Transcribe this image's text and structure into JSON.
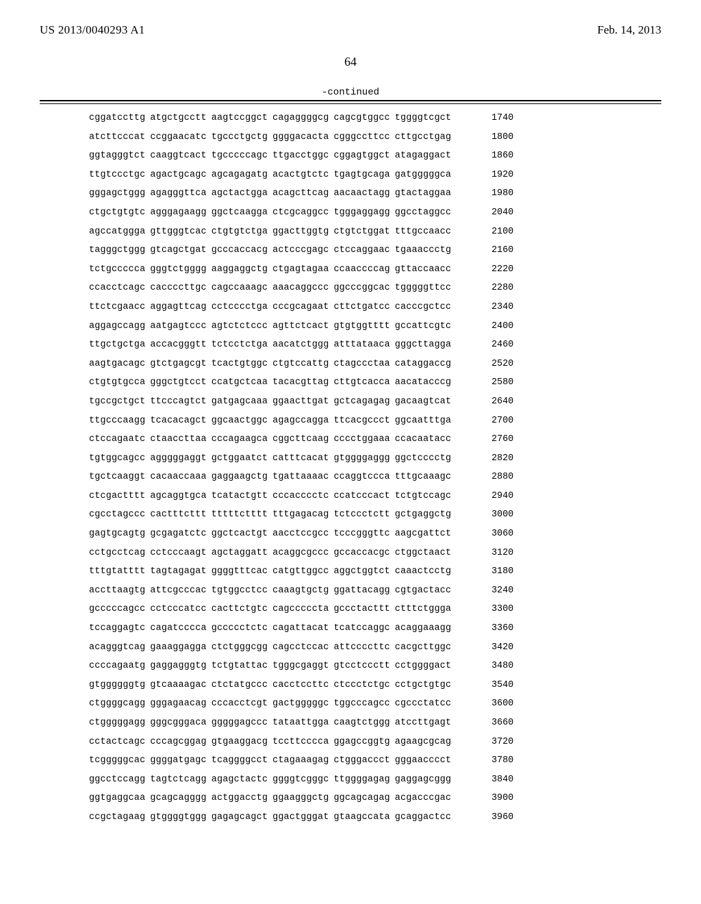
{
  "header": {
    "publication_number": "US 2013/0040293 A1",
    "date": "Feb. 14, 2013"
  },
  "page_number": "64",
  "continued_label": "-continued",
  "sequence": {
    "rows": [
      {
        "g": [
          "cggatccttg",
          "atgctgcctt",
          "aagtccggct",
          "cagaggggcg",
          "cagcgtggcc",
          "tggggtcgct"
        ],
        "pos": 1740
      },
      {
        "g": [
          "atcttcccat",
          "ccggaacatc",
          "tgccctgctg",
          "ggggacacta",
          "cgggccttcc",
          "cttgcctgag"
        ],
        "pos": 1800
      },
      {
        "g": [
          "ggtagggtct",
          "caaggtcact",
          "tgcccccagc",
          "ttgacctggc",
          "cggagtggct",
          "atagaggact"
        ],
        "pos": 1860
      },
      {
        "g": [
          "ttgtccctgc",
          "agactgcagc",
          "agcagagatg",
          "acactgtctc",
          "tgagtgcaga",
          "gatgggggca"
        ],
        "pos": 1920
      },
      {
        "g": [
          "gggagctggg",
          "agagggttca",
          "agctactgga",
          "acagcttcag",
          "aacaactagg",
          "gtactaggaa"
        ],
        "pos": 1980
      },
      {
        "g": [
          "ctgctgtgtc",
          "agggagaagg",
          "ggctcaagga",
          "ctcgcaggcc",
          "tgggaggagg",
          "ggcctaggcc"
        ],
        "pos": 2040
      },
      {
        "g": [
          "agccatggga",
          "gttgggtcac",
          "ctgtgtctga",
          "ggacttggtg",
          "ctgtctggat",
          "tttgccaacc"
        ],
        "pos": 2100
      },
      {
        "g": [
          "tagggctggg",
          "gtcagctgat",
          "gcccaccacg",
          "actcccgagc",
          "ctccaggaac",
          "tgaaaccctg"
        ],
        "pos": 2160
      },
      {
        "g": [
          "tctgccccca",
          "gggtctgggg",
          "aaggaggctg",
          "ctgagtagaa",
          "ccaaccccag",
          "gttaccaacc"
        ],
        "pos": 2220
      },
      {
        "g": [
          "ccacctcagc",
          "caccccttgc",
          "cagccaaagc",
          "aaacaggccc",
          "ggcccggcac",
          "tgggggttcc"
        ],
        "pos": 2280
      },
      {
        "g": [
          "ttctcgaacc",
          "aggagttcag",
          "cctcccctga",
          "cccgcagaat",
          "cttctgatcc",
          "cacccgctcc"
        ],
        "pos": 2340
      },
      {
        "g": [
          "aggagccagg",
          "aatgagtccc",
          "agtctctccc",
          "agttctcact",
          "gtgtggtttt",
          "gccattcgtc"
        ],
        "pos": 2400
      },
      {
        "g": [
          "ttgctgctga",
          "accacgggtt",
          "tctcctctga",
          "aacatctggg",
          "atttataaca",
          "gggcttagga"
        ],
        "pos": 2460
      },
      {
        "g": [
          "aagtgacagc",
          "gtctgagcgt",
          "tcactgtggc",
          "ctgtccattg",
          "ctagccctaa",
          "cataggaccg"
        ],
        "pos": 2520
      },
      {
        "g": [
          "ctgtgtgcca",
          "gggctgtcct",
          "ccatgctcaa",
          "tacacgttag",
          "cttgtcacca",
          "aacatacccg"
        ],
        "pos": 2580
      },
      {
        "g": [
          "tgccgctgct",
          "ttcccagtct",
          "gatgagcaaa",
          "ggaacttgat",
          "gctcagagag",
          "gacaagtcat"
        ],
        "pos": 2640
      },
      {
        "g": [
          "ttgcccaagg",
          "tcacacagct",
          "ggcaactggc",
          "agagccagga",
          "ttcacgccct",
          "ggcaatttga"
        ],
        "pos": 2700
      },
      {
        "g": [
          "ctccagaatc",
          "ctaaccttaa",
          "cccagaagca",
          "cggcttcaag",
          "cccctggaaa",
          "ccacaatacc"
        ],
        "pos": 2760
      },
      {
        "g": [
          "tgtggcagcc",
          "agggggaggt",
          "gctggaatct",
          "catttcacat",
          "gtggggaggg",
          "ggctcccctg"
        ],
        "pos": 2820
      },
      {
        "g": [
          "tgctcaaggt",
          "cacaaccaaa",
          "gaggaagctg",
          "tgattaaaac",
          "ccaggtccca",
          "tttgcaaagc"
        ],
        "pos": 2880
      },
      {
        "g": [
          "ctcgactttt",
          "agcaggtgca",
          "tcatactgtt",
          "cccacccctc",
          "ccatcccact",
          "tctgtccagc"
        ],
        "pos": 2940
      },
      {
        "g": [
          "cgcctagccc",
          "cactttcttt",
          "tttttctttt",
          "tttgagacag",
          "tctccctctt",
          "gctgaggctg"
        ],
        "pos": 3000
      },
      {
        "g": [
          "gagtgcagtg",
          "gcgagatctc",
          "ggctcactgt",
          "aacctccgcc",
          "tcccgggttc",
          "aagcgattct"
        ],
        "pos": 3060
      },
      {
        "g": [
          "cctgcctcag",
          "cctcccaagt",
          "agctaggatt",
          "acaggcgccc",
          "gccaccacgc",
          "ctggctaact"
        ],
        "pos": 3120
      },
      {
        "g": [
          "tttgtatttt",
          "tagtagagat",
          "ggggtttcac",
          "catgttggcc",
          "aggctggtct",
          "caaactcctg"
        ],
        "pos": 3180
      },
      {
        "g": [
          "accttaagtg",
          "attcgcccac",
          "tgtggcctcc",
          "caaagtgctg",
          "ggattacagg",
          "cgtgactacc"
        ],
        "pos": 3240
      },
      {
        "g": [
          "gcccccagcc",
          "cctcccatcc",
          "cacttctgtc",
          "cagcccccta",
          "gccctacttt",
          "ctttctggga"
        ],
        "pos": 3300
      },
      {
        "g": [
          "tccaggagtc",
          "cagatcccca",
          "gccccctctc",
          "cagattacat",
          "tcatccaggc",
          "acaggaaagg"
        ],
        "pos": 3360
      },
      {
        "g": [
          "acagggtcag",
          "gaaaggagga",
          "ctctgggcgg",
          "cagcctccac",
          "attccccttc",
          "cacgcttggc"
        ],
        "pos": 3420
      },
      {
        "g": [
          "ccccagaatg",
          "gaggagggtg",
          "tctgtattac",
          "tgggcgaggt",
          "gtcctccctt",
          "cctggggact"
        ],
        "pos": 3480
      },
      {
        "g": [
          "gtggggggtg",
          "gtcaaaagac",
          "ctctatgccc",
          "cacctccttc",
          "ctccctctgc",
          "cctgctgtgc"
        ],
        "pos": 3540
      },
      {
        "g": [
          "ctggggcagg",
          "gggagaacag",
          "cccacctcgt",
          "gactgggggc",
          "tggcccagcc",
          "cgccctatcc"
        ],
        "pos": 3600
      },
      {
        "g": [
          "ctgggggagg",
          "gggcgggaca",
          "gggggagccc",
          "tataattgga",
          "caagtctggg",
          "atccttgagt"
        ],
        "pos": 3660
      },
      {
        "g": [
          "cctactcagc",
          "cccagcggag",
          "gtgaaggacg",
          "tccttcccca",
          "ggagccggtg",
          "agaagcgcag"
        ],
        "pos": 3720
      },
      {
        "g": [
          "tcgggggcac",
          "ggggatgagc",
          "tcaggggcct",
          "ctagaaagag",
          "ctgggaccct",
          "gggaacccct"
        ],
        "pos": 3780
      },
      {
        "g": [
          "ggcctccagg",
          "tagtctcagg",
          "agagctactc",
          "ggggtcgggc",
          "ttggggagag",
          "gaggagcggg"
        ],
        "pos": 3840
      },
      {
        "g": [
          "ggtgaggcaa",
          "gcagcagggg",
          "actggacctg",
          "ggaagggctg",
          "ggcagcagag",
          "acgacccgac"
        ],
        "pos": 3900
      },
      {
        "g": [
          "ccgctagaag",
          "gtggggtggg",
          "gagagcagct",
          "ggactgggat",
          "gtaagccata",
          "gcaggactcc"
        ],
        "pos": 3960
      }
    ]
  }
}
